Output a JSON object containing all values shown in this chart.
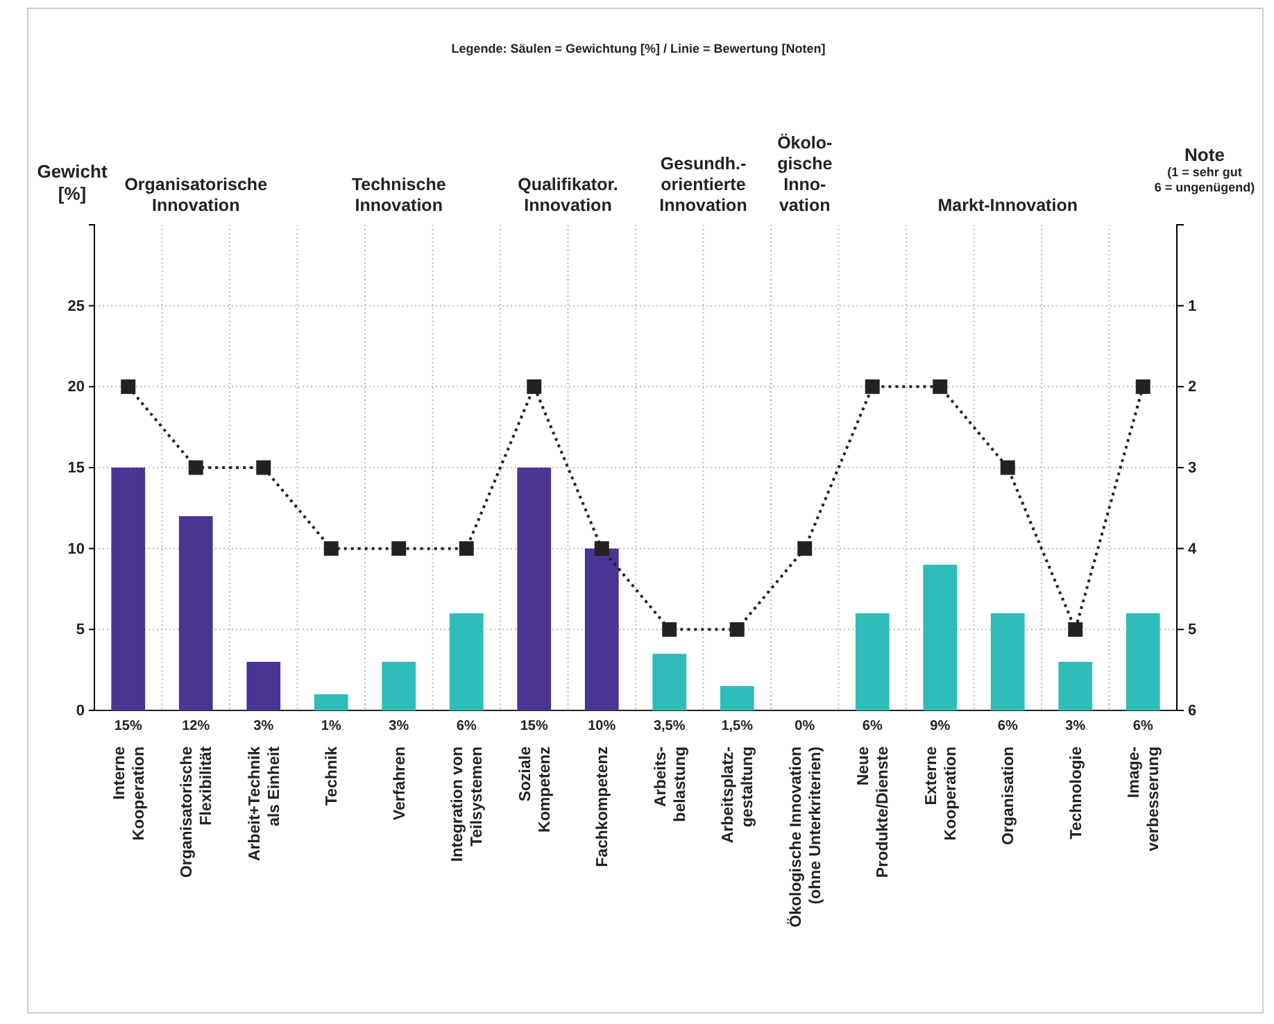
{
  "chart_data": {
    "type": "bar",
    "subtitle": "Legende: Säulen = Gewichtung [%] / Linie = Bewertung [Noten]",
    "ylabel": "Gewicht\n[%]",
    "y2label": "Note\n(1 = sehr gut\n6 = ungenügend)",
    "annotations": [
      "Organisatorische\nInnovation",
      "Technische\nInnovation",
      "Qualifikator.\nInnovation",
      "Gesundh.-\norientierte\nInnovation",
      "Ökolo-\ngische\nInno-\nvation",
      "Markt-Innovation"
    ],
    "categories": [
      "Interne\nKooperation",
      "Organisatorische\nFlexibilität",
      "Arbeit+Technik\nals Einheit",
      "Technik",
      "Verfahren",
      "Integration von\nTeilsystemen",
      "Soziale\nKompetenz",
      "Fachkompetenz",
      "Arbeits-\nbelastung",
      "Arbeitsplatz-\ngestaltung",
      "Ökologische Innovation\n(ohne Unterkriterien)",
      "Neue\nProdukte/Dienste",
      "Externe\nKooperation",
      "Organisation",
      "Technologie",
      "Image-\nverbesserung"
    ],
    "series": [
      {
        "values": [
          15,
          12,
          3,
          1,
          3,
          6,
          15,
          10,
          3.5,
          1.5,
          0,
          6,
          9,
          6,
          3,
          6
        ],
        "colors": [
          "#4b3592",
          "#4b3592",
          "#4b3592",
          "#2ebcb8",
          "#2ebcb8",
          "#2ebcb8",
          "#4b3592",
          "#4b3592",
          "#2ebcb8",
          "#2ebcb8",
          "#2ebcb8",
          "#2ebcb8",
          "#2ebcb8",
          "#2ebcb8",
          "#2ebcb8",
          "#2ebcb8"
        ],
        "value_labels": [
          "15%",
          "12%",
          "3%",
          "1%",
          "3%",
          "6%",
          "15%",
          "10%",
          "3,5%",
          "1,5%",
          "0%",
          "6%",
          "9%",
          "6%",
          "3%",
          "6%"
        ]
      },
      {
        "type": "line",
        "axis": "y2",
        "color": "#222222",
        "values": [
          2,
          3,
          3,
          4,
          4,
          4,
          2,
          4,
          5,
          5,
          4,
          2,
          2,
          3,
          5,
          2
        ]
      }
    ],
    "ylim": [
      0,
      30
    ],
    "yticks": [
      0,
      5,
      10,
      15,
      20,
      25
    ],
    "y2lim": [
      6,
      0
    ],
    "y2ticks": [
      1,
      2,
      3,
      4,
      5,
      6
    ],
    "grid": true,
    "marker": "square",
    "line_style": "dotted"
  }
}
